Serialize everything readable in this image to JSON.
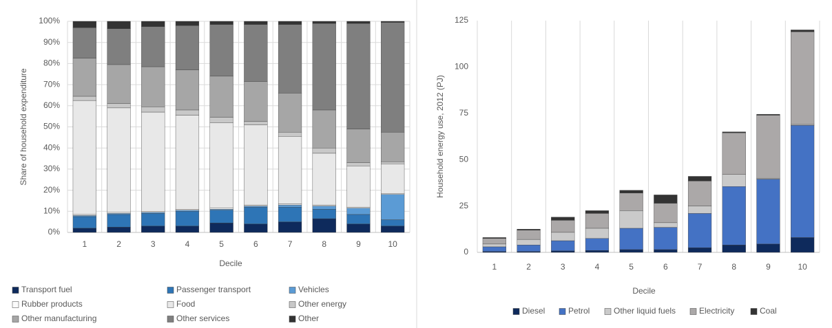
{
  "chart_data": [
    {
      "type": "stacked-bar",
      "x_label": "Decile",
      "y_label": "Share of household expenditure",
      "categories": [
        "1",
        "2",
        "3",
        "4",
        "5",
        "6",
        "7",
        "8",
        "9",
        "10"
      ],
      "ylim": [
        0,
        100
      ],
      "yticks": [
        {
          "value": 0,
          "label": "0%"
        },
        {
          "value": 10,
          "label": "10%"
        },
        {
          "value": 20,
          "label": "20%"
        },
        {
          "value": 30,
          "label": "30%"
        },
        {
          "value": 40,
          "label": "40%"
        },
        {
          "value": 50,
          "label": "50%"
        },
        {
          "value": 60,
          "label": "60%"
        },
        {
          "value": 70,
          "label": "70%"
        },
        {
          "value": 80,
          "label": "80%"
        },
        {
          "value": 90,
          "label": "90%"
        },
        {
          "value": 100,
          "label": "100%"
        }
      ],
      "grid": true,
      "series": [
        {
          "name": "Transport fuel",
          "color": "#0e2a5c",
          "values": [
            2,
            2.5,
            3,
            3,
            4.5,
            4,
            5,
            6.5,
            4,
            3
          ]
        },
        {
          "name": "Passenger transport",
          "color": "#2e75b6",
          "values": [
            5.5,
            6,
            6,
            7,
            6,
            8,
            7,
            4.5,
            4.5,
            3
          ]
        },
        {
          "name": "Vehicles",
          "color": "#5b9bd5",
          "values": [
            0.5,
            0.5,
            0.5,
            0.5,
            0.5,
            0.5,
            1,
            1.5,
            3,
            12
          ]
        },
        {
          "name": "Rubber products",
          "color": "#fbfbfb",
          "values": [
            0.5,
            0.5,
            0.5,
            0.5,
            0.5,
            0.5,
            0.5,
            0.5,
            0.5,
            0.5
          ]
        },
        {
          "name": "Food",
          "color": "#e8e8e8",
          "values": [
            54,
            49.5,
            47,
            44.5,
            40.5,
            38,
            32,
            24.5,
            19.5,
            14
          ]
        },
        {
          "name": "Other energy",
          "color": "#c8c8c8",
          "values": [
            2,
            2,
            2.5,
            2.5,
            2.5,
            1.5,
            2,
            2.5,
            1.5,
            1
          ]
        },
        {
          "name": "Other manufacturing",
          "color": "#a6a6a6",
          "values": [
            18,
            18.5,
            19,
            19,
            19.5,
            19,
            18.5,
            18,
            16,
            14
          ]
        },
        {
          "name": "Other services",
          "color": "#7f7f7f",
          "values": [
            14.5,
            17,
            19,
            21,
            24.5,
            27,
            32.5,
            41,
            50,
            52
          ]
        },
        {
          "name": "Other",
          "color": "#333333",
          "values": [
            3,
            3.5,
            2.5,
            2,
            1.5,
            1.5,
            1.5,
            1,
            1,
            0.5
          ]
        }
      ]
    },
    {
      "type": "stacked-bar",
      "x_label": "Decile",
      "y_label": "Household energy use, 2012 (PJ)",
      "categories": [
        "1",
        "2",
        "3",
        "4",
        "5",
        "6",
        "7",
        "8",
        "9",
        "10"
      ],
      "ylim": [
        0,
        125
      ],
      "yticks": [
        0,
        25,
        50,
        75,
        100,
        125
      ],
      "grid": false,
      "series": [
        {
          "name": "Diesel",
          "color": "#0e2a5c",
          "values": [
            0.5,
            0.5,
            0.8,
            1,
            1.5,
            1.5,
            2.5,
            4,
            4.5,
            8
          ]
        },
        {
          "name": "Petrol",
          "color": "#4472c4",
          "values": [
            2.5,
            3.5,
            5.5,
            6.5,
            11.5,
            12,
            18.5,
            31.5,
            35,
            60.5
          ]
        },
        {
          "name": "Other liquid fuels",
          "color": "#cacaca",
          "values": [
            1.5,
            3,
            4.5,
            5.5,
            9.5,
            2.5,
            4,
            6.5,
            0.5,
            0.5
          ]
        },
        {
          "name": "Electricity",
          "color": "#aba8a8",
          "values": [
            3,
            5,
            6.5,
            8,
            9.5,
            10.5,
            13.5,
            22.5,
            34,
            50
          ]
        },
        {
          "name": "Coal",
          "color": "#333333",
          "values": [
            0.5,
            0.5,
            1.7,
            1.5,
            1.5,
            4.5,
            2.5,
            0.5,
            0.5,
            1
          ]
        }
      ]
    }
  ]
}
